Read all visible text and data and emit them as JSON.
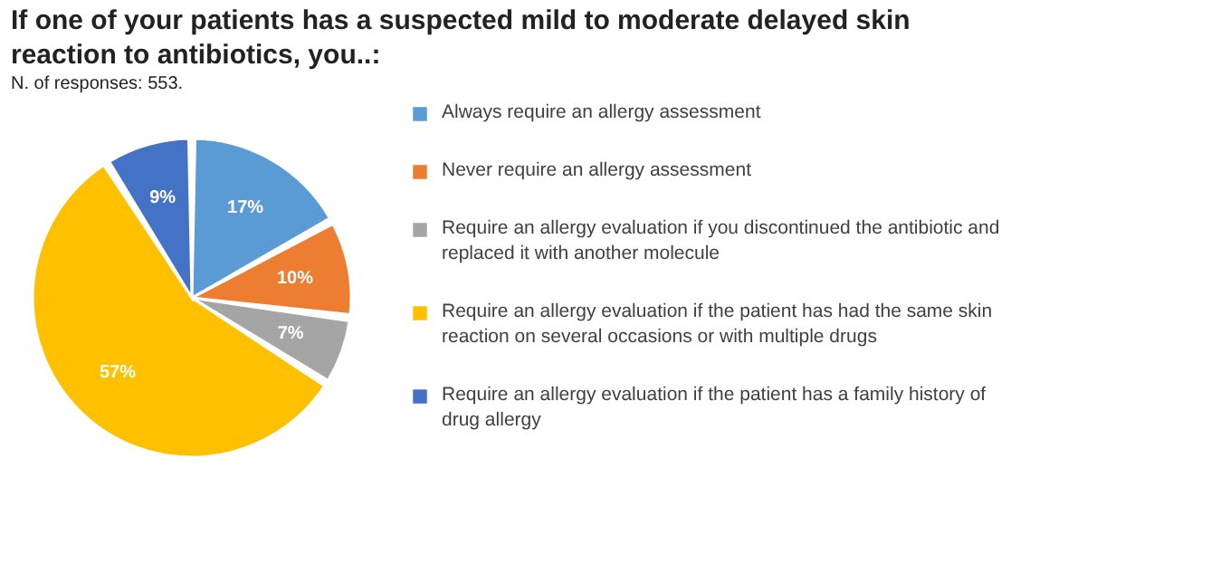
{
  "chart_data": {
    "type": "pie",
    "title": "If one of your patients has a suspected mild to moderate delayed skin reaction to antibiotics, you..:",
    "subtitle": "N. of responses: 553.",
    "categories": [
      "Always require an allergy assessment",
      "Never require an allergy assessment",
      "Require an allergy evaluation if you discontinued the antibiotic and replaced it with another molecule",
      "Require an allergy evaluation if the patient has had the same skin reaction on several occasions or with multiple drugs",
      "Require an allergy evaluation if the patient has a family history of drug allergy"
    ],
    "values": [
      17,
      10,
      7,
      57,
      9
    ],
    "colors": [
      "#5b9bd5",
      "#ed7d31",
      "#a5a5a5",
      "#ffc000",
      "#4472c4"
    ],
    "value_labels": [
      "17%",
      "10%",
      "7%",
      "57%",
      "9%"
    ],
    "legend": "right"
  }
}
